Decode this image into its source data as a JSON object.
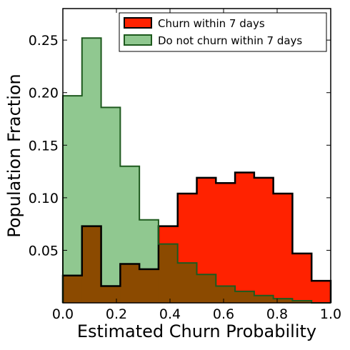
{
  "chart_data": {
    "type": "bar",
    "title": "",
    "xlabel": "Estimated Churn Probability",
    "ylabel": "Population Fraction",
    "xlim": [
      0.0,
      1.0
    ],
    "ylim": [
      0.0,
      0.28
    ],
    "bin_edges": [
      0.0,
      0.0714,
      0.1429,
      0.2143,
      0.2857,
      0.3571,
      0.4286,
      0.5,
      0.5714,
      0.6429,
      0.7143,
      0.7857,
      0.8571,
      0.9286,
      1.0
    ],
    "x_ticks": [
      0.0,
      0.2,
      0.4,
      0.6,
      0.8,
      1.0
    ],
    "x_tick_labels": [
      "0.0",
      "0.2",
      "0.4",
      "0.6",
      "0.8",
      "1.0"
    ],
    "y_ticks": [
      0.05,
      0.1,
      0.15,
      0.2,
      0.25
    ],
    "y_tick_labels": [
      "0.05",
      "0.10",
      "0.15",
      "0.20",
      "0.25"
    ],
    "grid": false,
    "legend_placement": "top-right",
    "series": [
      {
        "name": "Churn within 7 days",
        "color": "#ff2200",
        "values": [
          0.026,
          0.073,
          0.016,
          0.037,
          0.032,
          0.073,
          0.104,
          0.119,
          0.114,
          0.124,
          0.119,
          0.104,
          0.047,
          0.021
        ]
      },
      {
        "name": "Do not churn within 7 days",
        "color": "#90c890",
        "values": [
          0.197,
          0.252,
          0.186,
          0.13,
          0.079,
          0.056,
          0.038,
          0.027,
          0.016,
          0.011,
          0.007,
          0.004,
          0.002,
          0.0
        ]
      }
    ],
    "overlap_color": "#8b4a00"
  }
}
